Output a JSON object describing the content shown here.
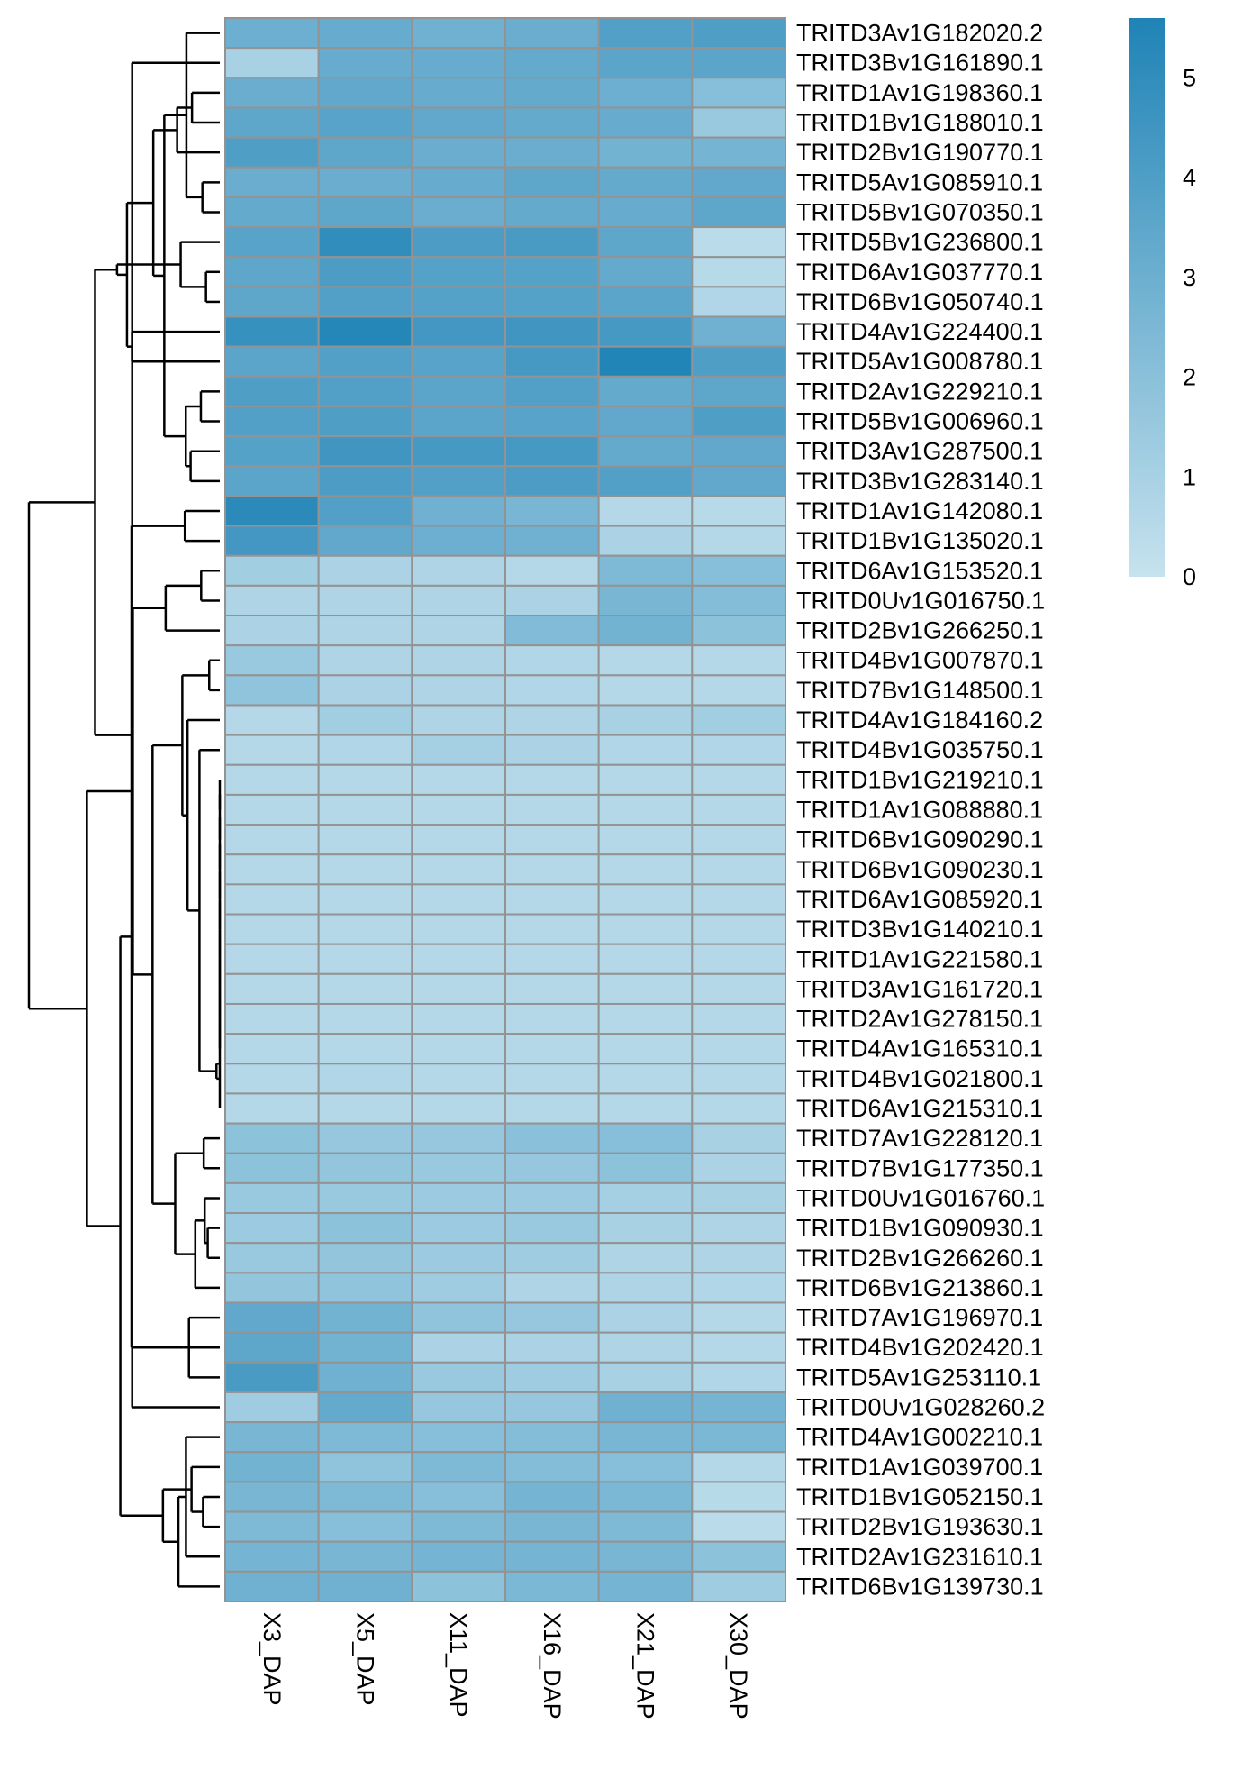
{
  "chart_data": {
    "type": "heatmap",
    "title": "",
    "columns": [
      "X3_DAP",
      "X5_DAP",
      "X11_DAP",
      "X16_DAP",
      "X21_DAP",
      "X30_DAP"
    ],
    "rows": [
      "TRITD3Av1G182020.2",
      "TRITD3Bv1G161890.1",
      "TRITD1Av1G198360.1",
      "TRITD1Bv1G188010.1",
      "TRITD2Bv1G190770.1",
      "TRITD5Av1G085910.1",
      "TRITD5Bv1G070350.1",
      "TRITD5Bv1G236800.1",
      "TRITD6Av1G037770.1",
      "TRITD6Bv1G050740.1",
      "TRITD4Av1G224400.1",
      "TRITD5Av1G008780.1",
      "TRITD2Av1G229210.1",
      "TRITD5Bv1G006960.1",
      "TRITD3Av1G287500.1",
      "TRITD3Bv1G283140.1",
      "TRITD1Av1G142080.1",
      "TRITD1Bv1G135020.1",
      "TRITD6Av1G153520.1",
      "TRITD0Uv1G016750.1",
      "TRITD2Bv1G266250.1",
      "TRITD4Bv1G007870.1",
      "TRITD7Bv1G148500.1",
      "TRITD4Av1G184160.2",
      "TRITD4Bv1G035750.1",
      "TRITD1Bv1G219210.1",
      "TRITD1Av1G088880.1",
      "TRITD6Bv1G090290.1",
      "TRITD6Bv1G090230.1",
      "TRITD6Av1G085920.1",
      "TRITD3Bv1G140210.1",
      "TRITD1Av1G221580.1",
      "TRITD3Av1G161720.1",
      "TRITD2Av1G278150.1",
      "TRITD4Av1G165310.1",
      "TRITD4Bv1G021800.1",
      "TRITD6Av1G215310.1",
      "TRITD7Av1G228120.1",
      "TRITD7Bv1G177350.1",
      "TRITD0Uv1G016760.1",
      "TRITD1Bv1G090930.1",
      "TRITD2Bv1G266260.1",
      "TRITD6Bv1G213860.1",
      "TRITD7Av1G196970.1",
      "TRITD4Bv1G202420.1",
      "TRITD5Av1G253110.1",
      "TRITD0Uv1G028260.2",
      "TRITD4Av1G002210.1",
      "TRITD1Av1G039700.1",
      "TRITD1Bv1G052150.1",
      "TRITD2Bv1G193630.1",
      "TRITD2Av1G231610.1",
      "TRITD6Bv1G139730.1"
    ],
    "values": [
      [
        3.0,
        3.2,
        2.9,
        3.1,
        3.9,
        4.0
      ],
      [
        1.0,
        3.2,
        3.2,
        3.3,
        3.6,
        3.6
      ],
      [
        3.1,
        3.4,
        3.2,
        3.3,
        3.0,
        2.1
      ],
      [
        3.5,
        3.7,
        3.4,
        3.3,
        3.2,
        1.5
      ],
      [
        4.0,
        3.5,
        3.1,
        3.1,
        2.8,
        2.7
      ],
      [
        3.1,
        3.1,
        3.2,
        3.5,
        3.3,
        3.4
      ],
      [
        3.3,
        3.5,
        3.1,
        3.3,
        3.2,
        3.5
      ],
      [
        3.7,
        5.0,
        4.1,
        4.2,
        3.5,
        0.4
      ],
      [
        3.5,
        4.1,
        3.8,
        3.8,
        3.3,
        0.5
      ],
      [
        3.5,
        3.9,
        3.8,
        3.8,
        3.6,
        0.7
      ],
      [
        4.8,
        5.4,
        4.4,
        4.5,
        4.3,
        2.9
      ],
      [
        3.6,
        3.9,
        3.7,
        4.3,
        5.5,
        4.0
      ],
      [
        4.0,
        3.9,
        3.6,
        3.9,
        3.3,
        3.5
      ],
      [
        3.9,
        4.0,
        3.6,
        3.7,
        3.4,
        4.0
      ],
      [
        3.8,
        4.5,
        4.3,
        4.3,
        3.3,
        3.4
      ],
      [
        3.6,
        4.1,
        3.9,
        4.1,
        3.9,
        3.4
      ],
      [
        5.2,
        3.9,
        2.9,
        2.6,
        0.6,
        0.5
      ],
      [
        4.4,
        3.4,
        3.0,
        2.9,
        0.9,
        0.6
      ],
      [
        1.2,
        0.9,
        0.8,
        0.6,
        2.4,
        2.1
      ],
      [
        0.8,
        0.8,
        0.8,
        0.9,
        2.6,
        2.2
      ],
      [
        0.9,
        0.8,
        0.8,
        2.3,
        2.8,
        1.9
      ],
      [
        1.5,
        0.8,
        0.8,
        0.7,
        0.6,
        0.6
      ],
      [
        1.8,
        0.9,
        0.8,
        0.7,
        0.6,
        0.6
      ],
      [
        0.6,
        1.2,
        0.8,
        0.8,
        1.0,
        1.2
      ],
      [
        0.6,
        0.7,
        1.1,
        0.9,
        0.7,
        0.7
      ],
      [
        0.6,
        0.6,
        0.6,
        0.6,
        0.6,
        0.6
      ],
      [
        0.6,
        0.6,
        0.6,
        0.6,
        0.6,
        0.6
      ],
      [
        0.6,
        0.6,
        0.6,
        0.6,
        0.6,
        0.6
      ],
      [
        0.6,
        0.6,
        0.6,
        0.6,
        0.6,
        0.6
      ],
      [
        0.6,
        0.6,
        0.6,
        0.6,
        0.6,
        0.6
      ],
      [
        0.6,
        0.6,
        0.6,
        0.6,
        0.6,
        0.6
      ],
      [
        0.6,
        0.6,
        0.6,
        0.6,
        0.6,
        0.6
      ],
      [
        0.6,
        0.6,
        0.6,
        0.6,
        0.6,
        0.6
      ],
      [
        0.6,
        0.6,
        0.6,
        0.6,
        0.6,
        0.6
      ],
      [
        0.6,
        0.6,
        0.6,
        0.6,
        0.6,
        0.6
      ],
      [
        0.6,
        0.7,
        0.6,
        0.6,
        0.6,
        0.6
      ],
      [
        0.6,
        0.6,
        0.6,
        0.6,
        0.6,
        0.6
      ],
      [
        1.9,
        1.6,
        1.6,
        2.0,
        2.1,
        1.0
      ],
      [
        1.9,
        1.7,
        1.5,
        1.6,
        1.9,
        0.9
      ],
      [
        1.5,
        1.5,
        1.4,
        1.4,
        1.1,
        1.0
      ],
      [
        1.4,
        1.9,
        1.4,
        1.5,
        1.0,
        0.8
      ],
      [
        1.5,
        1.7,
        1.4,
        1.3,
        0.8,
        0.8
      ],
      [
        1.7,
        1.8,
        1.3,
        0.8,
        0.8,
        0.7
      ],
      [
        3.4,
        2.8,
        1.8,
        1.6,
        0.9,
        0.6
      ],
      [
        3.5,
        2.8,
        0.9,
        0.9,
        0.8,
        0.6
      ],
      [
        4.2,
        2.9,
        1.5,
        1.3,
        1.0,
        0.7
      ],
      [
        1.3,
        3.3,
        1.6,
        1.6,
        2.9,
        2.7
      ],
      [
        2.6,
        2.4,
        2.1,
        2.2,
        2.6,
        2.5
      ],
      [
        2.8,
        1.8,
        2.4,
        2.2,
        2.1,
        0.6
      ],
      [
        2.6,
        2.4,
        2.1,
        2.7,
        2.5,
        0.5
      ],
      [
        2.4,
        2.1,
        2.4,
        2.6,
        2.4,
        0.4
      ],
      [
        2.7,
        2.6,
        2.7,
        2.7,
        2.6,
        1.9
      ],
      [
        2.9,
        2.9,
        1.9,
        2.5,
        2.7,
        1.3
      ]
    ],
    "color_scale": {
      "min": 0,
      "max": 5.6,
      "low_color": "#c6e2ee",
      "high_color": "#1f83b6",
      "cell_border": "#939393"
    },
    "legend": {
      "placement": "right",
      "ticks": [
        0,
        1,
        2,
        3,
        4,
        5
      ]
    },
    "dendrogram": {
      "placement": "left",
      "line_color": "#000000"
    }
  }
}
